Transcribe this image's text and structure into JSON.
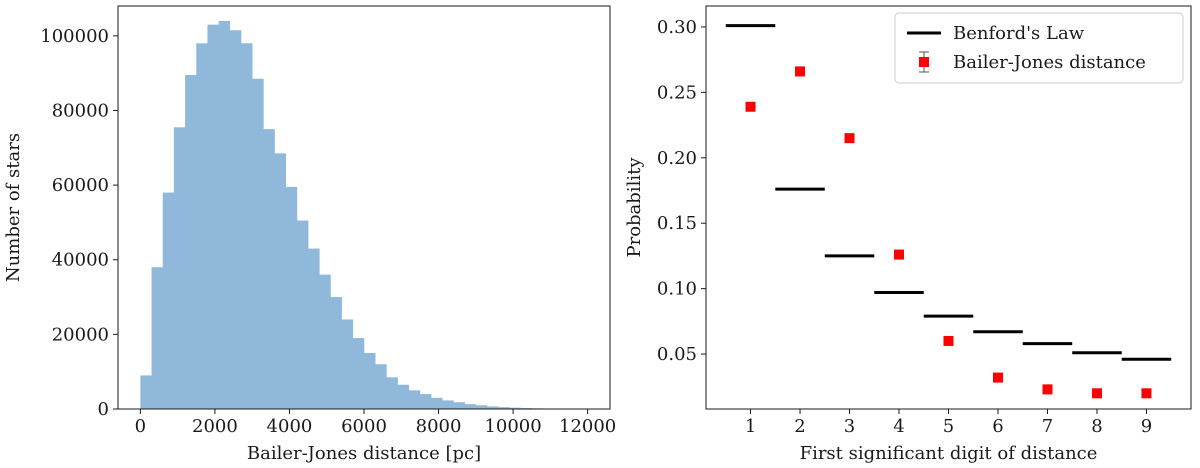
{
  "chart_data": [
    {
      "type": "bar",
      "subtype": "histogram",
      "xlabel": "Bailer-Jones distance [pc]",
      "ylabel": "Number of stars",
      "xlim": [
        -600,
        12600
      ],
      "ylim": [
        0,
        108000
      ],
      "xticks": [
        0,
        2000,
        4000,
        6000,
        8000,
        10000,
        12000
      ],
      "yticks": [
        0,
        20000,
        40000,
        60000,
        80000,
        100000
      ],
      "bin_start": 0,
      "bin_width": 300,
      "values": [
        9000,
        38000,
        58000,
        75500,
        89500,
        98000,
        103000,
        104000,
        101500,
        98000,
        88500,
        75000,
        68500,
        59500,
        50500,
        43000,
        36000,
        30000,
        24000,
        19000,
        15000,
        12000,
        8500,
        6500,
        5000,
        4000,
        3000,
        2300,
        1800,
        1300,
        1000,
        700,
        500,
        350,
        250,
        180,
        120,
        80,
        50,
        30
      ],
      "color": "#8fb8db",
      "grid": false
    },
    {
      "type": "scatter",
      "xlabel": "First significant digit of distance",
      "ylabel": "Probability",
      "xlim": [
        0.1,
        9.9
      ],
      "ylim": [
        0.008,
        0.316
      ],
      "xticks": [
        1,
        2,
        3,
        4,
        5,
        6,
        7,
        8,
        9
      ],
      "yticks": [
        0.05,
        0.1,
        0.15,
        0.2,
        0.25,
        0.3
      ],
      "ytick_labels": [
        "0.05",
        "0.10",
        "0.15",
        "0.20",
        "0.25",
        "0.30"
      ],
      "legend_position": "top-right",
      "series": [
        {
          "name": "Benford's Law",
          "style": "step-segments",
          "color": "#000000",
          "x": [
            1,
            2,
            3,
            4,
            5,
            6,
            7,
            8,
            9
          ],
          "y": [
            0.301,
            0.176,
            0.125,
            0.097,
            0.079,
            0.067,
            0.058,
            0.051,
            0.046
          ]
        },
        {
          "name": "Bailer-Jones distance",
          "style": "square-markers-errorbars",
          "color": "#ff0000",
          "x": [
            1,
            2,
            3,
            4,
            5,
            6,
            7,
            8,
            9
          ],
          "y": [
            0.239,
            0.266,
            0.215,
            0.126,
            0.06,
            0.032,
            0.023,
            0.02,
            0.02
          ],
          "yerr": [
            0.003,
            0.003,
            0.003,
            0.003,
            0.003,
            0.003,
            0.003,
            0.003,
            0.003
          ]
        }
      ],
      "grid": false
    }
  ]
}
